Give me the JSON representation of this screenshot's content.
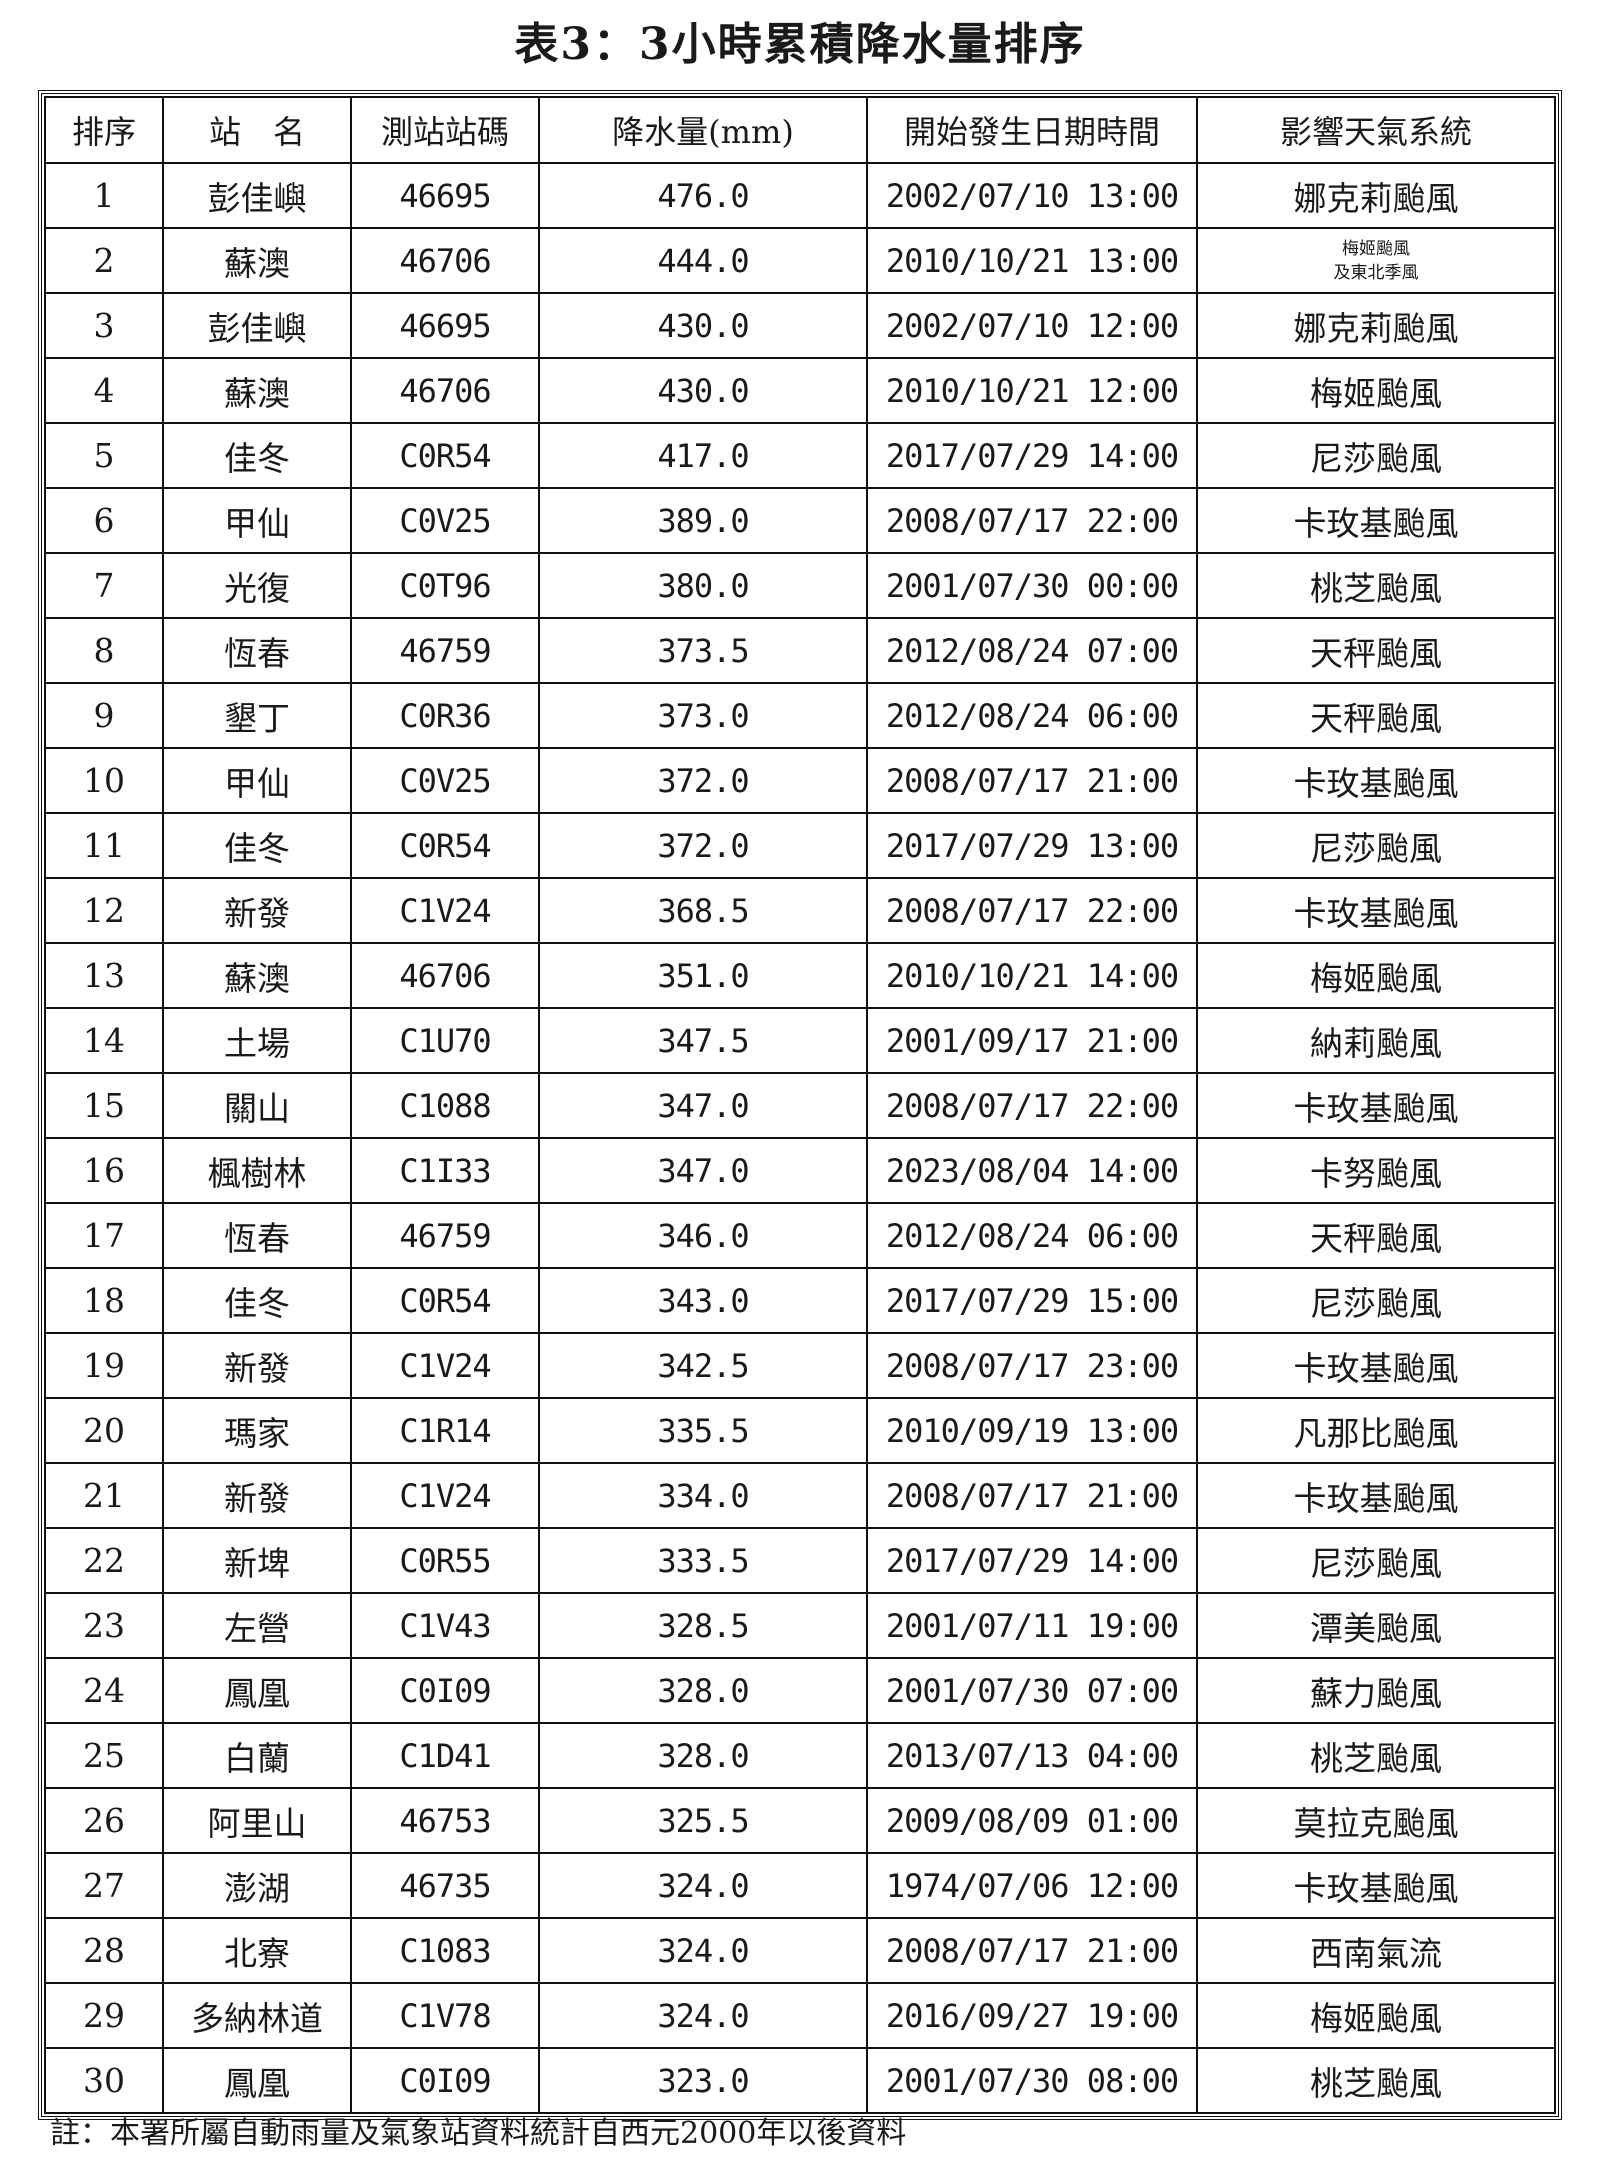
{
  "title": "表3：3小時累積降水量排序",
  "headers": [
    "排序",
    "站　名",
    "測站站碼",
    "降水量(mm)",
    "開始發生日期時間",
    "影響天氣系統"
  ],
  "rows": [
    [
      "1",
      "彭佳嶼",
      "46695",
      "476.0",
      "2002/07/10 13:00",
      "娜克莉颱風"
    ],
    [
      "2",
      "蘇澳",
      "46706",
      "444.0",
      "2010/10/21 13:00",
      "梅姬颱風\n及東北季風"
    ],
    [
      "3",
      "彭佳嶼",
      "46695",
      "430.0",
      "2002/07/10 12:00",
      "娜克莉颱風"
    ],
    [
      "4",
      "蘇澳",
      "46706",
      "430.0",
      "2010/10/21 12:00",
      "梅姬颱風"
    ],
    [
      "5",
      "佳冬",
      "C0R54",
      "417.0",
      "2017/07/29 14:00",
      "尼莎颱風"
    ],
    [
      "6",
      "甲仙",
      "C0V25",
      "389.0",
      "2008/07/17 22:00",
      "卡玫基颱風"
    ],
    [
      "7",
      "光復",
      "C0T96",
      "380.0",
      "2001/07/30 00:00",
      "桃芝颱風"
    ],
    [
      "8",
      "恆春",
      "46759",
      "373.5",
      "2012/08/24 07:00",
      "天秤颱風"
    ],
    [
      "9",
      "墾丁",
      "C0R36",
      "373.0",
      "2012/08/24 06:00",
      "天秤颱風"
    ],
    [
      "10",
      "甲仙",
      "C0V25",
      "372.0",
      "2008/07/17 21:00",
      "卡玫基颱風"
    ],
    [
      "11",
      "佳冬",
      "C0R54",
      "372.0",
      "2017/07/29 13:00",
      "尼莎颱風"
    ],
    [
      "12",
      "新發",
      "C1V24",
      "368.5",
      "2008/07/17 22:00",
      "卡玫基颱風"
    ],
    [
      "13",
      "蘇澳",
      "46706",
      "351.0",
      "2010/10/21 14:00",
      "梅姬颱風"
    ],
    [
      "14",
      "土場",
      "C1U70",
      "347.5",
      "2001/09/17 21:00",
      "納莉颱風"
    ],
    [
      "15",
      "關山",
      "C1088",
      "347.0",
      "2008/07/17 22:00",
      "卡玫基颱風"
    ],
    [
      "16",
      "楓樹林",
      "C1I33",
      "347.0",
      "2023/08/04 14:00",
      "卡努颱風"
    ],
    [
      "17",
      "恆春",
      "46759",
      "346.0",
      "2012/08/24 06:00",
      "天秤颱風"
    ],
    [
      "18",
      "佳冬",
      "C0R54",
      "343.0",
      "2017/07/29 15:00",
      "尼莎颱風"
    ],
    [
      "19",
      "新發",
      "C1V24",
      "342.5",
      "2008/07/17 23:00",
      "卡玫基颱風"
    ],
    [
      "20",
      "瑪家",
      "C1R14",
      "335.5",
      "2010/09/19 13:00",
      "凡那比颱風"
    ],
    [
      "21",
      "新發",
      "C1V24",
      "334.0",
      "2008/07/17 21:00",
      "卡玫基颱風"
    ],
    [
      "22",
      "新埤",
      "C0R55",
      "333.5",
      "2017/07/29 14:00",
      "尼莎颱風"
    ],
    [
      "23",
      "左營",
      "C1V43",
      "328.5",
      "2001/07/11 19:00",
      "潭美颱風"
    ],
    [
      "24",
      "鳳凰",
      "C0I09",
      "328.0",
      "2001/07/30 07:00",
      "蘇力颱風"
    ],
    [
      "25",
      "白蘭",
      "C1D41",
      "328.0",
      "2013/07/13 04:00",
      "桃芝颱風"
    ],
    [
      "26",
      "阿里山",
      "46753",
      "325.5",
      "2009/08/09 01:00",
      "莫拉克颱風"
    ],
    [
      "27",
      "澎湖",
      "46735",
      "324.0",
      "1974/07/06 12:00",
      "卡玫基颱風"
    ],
    [
      "28",
      "北寮",
      "C1083",
      "324.0",
      "2008/07/17 21:00",
      "西南氣流"
    ],
    [
      "29",
      "多納林道",
      "C1V78",
      "324.0",
      "2016/09/27 19:00",
      "梅姬颱風"
    ],
    [
      "30",
      "鳳凰",
      "C0I09",
      "323.0",
      "2001/07/30 08:00",
      "桃芝颱風"
    ]
  ],
  "note": "註：本署所屬自動雨量及氣象站資料統計自西元2000年以後資料"
}
